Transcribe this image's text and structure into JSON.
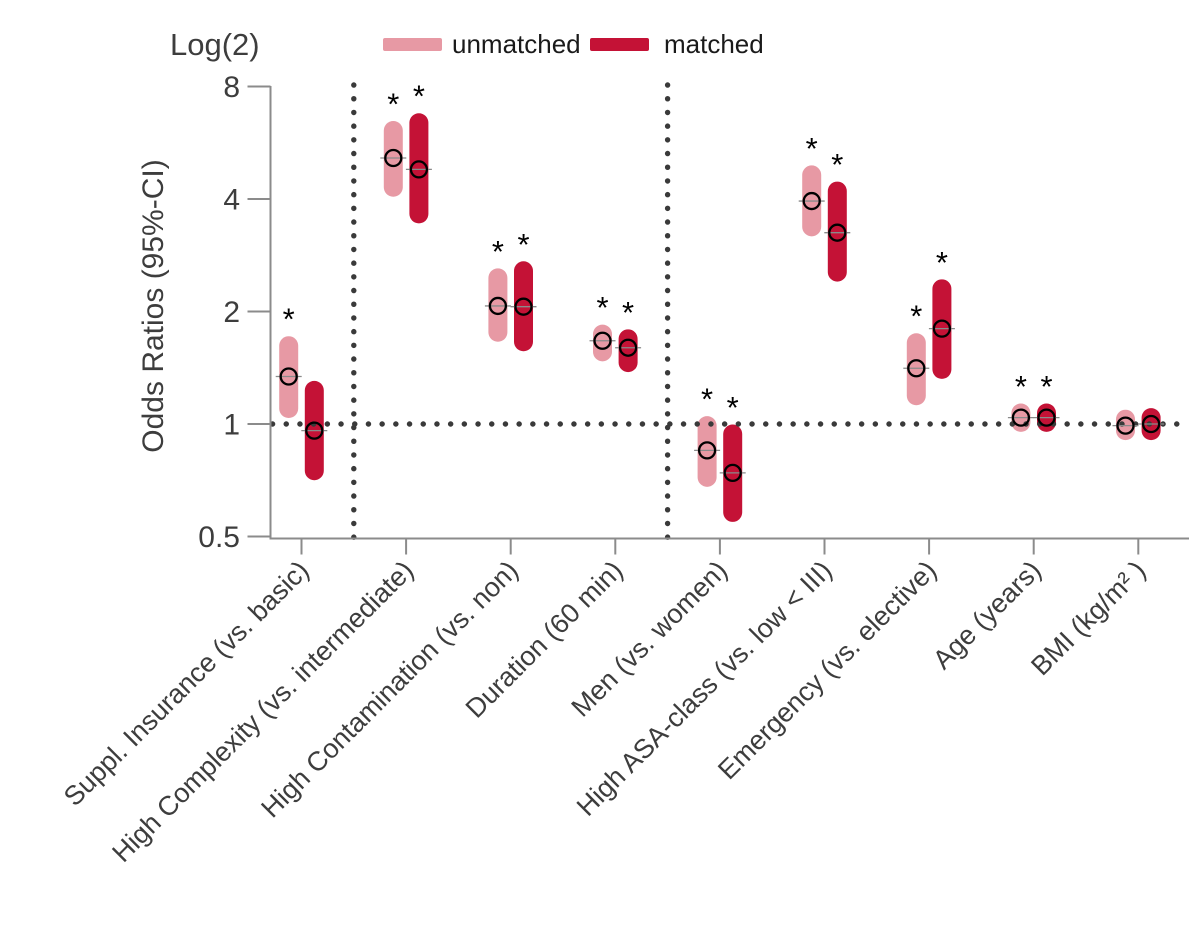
{
  "title": "Log(2)",
  "ylabel": "Odds Ratios (95%-CI)",
  "legend": {
    "position": "top",
    "items": [
      {
        "label": "unmatched",
        "color": "#E799A4"
      },
      {
        "label": "matched",
        "color": "#C41236"
      }
    ]
  },
  "sig_marker": "*",
  "colors": {
    "unmatched": "#E799A4",
    "matched": "#C41236",
    "axis": "#8B8B8B",
    "text": "#3D3D3D",
    "dots": "#3A3A3A",
    "marker_stroke": "#000000"
  },
  "chart_data": {
    "type": "scatter",
    "subtype": "odds-ratio forest plot with 95% confidence-interval bars",
    "title": "Log(2)",
    "ylabel": "Odds Ratios (95%-CI)",
    "yscale": "log2",
    "ylim": [
      0.5,
      8
    ],
    "yticks": [
      8,
      4,
      2,
      1,
      0.5
    ],
    "reference_line_y": 1,
    "grid": false,
    "legend_position": "top",
    "separator_after_category_index": [
      0,
      3
    ],
    "significance_marker": "*",
    "categories": [
      "Suppl. Insurance (vs. basic)",
      "High Complexity (vs. intermediate)",
      "High Contamination (vs. non)",
      "Duration (60 min)",
      "Men (vs. women)",
      "High ASA-class (vs. low < III)",
      "Emergency (vs. elective)",
      "Age (years)",
      "BMI (kg/m² )"
    ],
    "series": [
      {
        "name": "unmatched",
        "color": "#E799A4",
        "points": [
          {
            "or": 1.34,
            "ci_low": 1.1,
            "ci_high": 1.62,
            "significant": true
          },
          {
            "or": 5.15,
            "ci_low": 4.3,
            "ci_high": 6.1,
            "significant": true
          },
          {
            "or": 2.07,
            "ci_low": 1.76,
            "ci_high": 2.46,
            "significant": true
          },
          {
            "or": 1.67,
            "ci_low": 1.56,
            "ci_high": 1.74,
            "significant": true
          },
          {
            "or": 0.85,
            "ci_low": 0.72,
            "ci_high": 0.99,
            "significant": true
          },
          {
            "or": 3.95,
            "ci_low": 3.37,
            "ci_high": 4.64,
            "significant": true
          },
          {
            "or": 1.41,
            "ci_low": 1.19,
            "ci_high": 1.65,
            "significant": true
          },
          {
            "or": 1.04,
            "ci_low": 1.01,
            "ci_high": 1.07,
            "significant": true
          },
          {
            "or": 0.99,
            "ci_low": 0.96,
            "ci_high": 1.03,
            "significant": false
          }
        ]
      },
      {
        "name": "matched",
        "color": "#C41236",
        "points": [
          {
            "or": 0.96,
            "ci_low": 0.75,
            "ci_high": 1.23,
            "significant": false
          },
          {
            "or": 4.8,
            "ci_low": 3.65,
            "ci_high": 6.4,
            "significant": true
          },
          {
            "or": 2.06,
            "ci_low": 1.66,
            "ci_high": 2.57,
            "significant": true
          },
          {
            "or": 1.6,
            "ci_low": 1.46,
            "ci_high": 1.69,
            "significant": true
          },
          {
            "or": 0.74,
            "ci_low": 0.58,
            "ci_high": 0.94,
            "significant": true
          },
          {
            "or": 3.25,
            "ci_low": 2.55,
            "ci_high": 4.2,
            "significant": true
          },
          {
            "or": 1.8,
            "ci_low": 1.4,
            "ci_high": 2.3,
            "significant": true
          },
          {
            "or": 1.04,
            "ci_low": 1.01,
            "ci_high": 1.07,
            "significant": true
          },
          {
            "or": 1.0,
            "ci_low": 0.96,
            "ci_high": 1.04,
            "significant": false
          }
        ]
      }
    ]
  }
}
